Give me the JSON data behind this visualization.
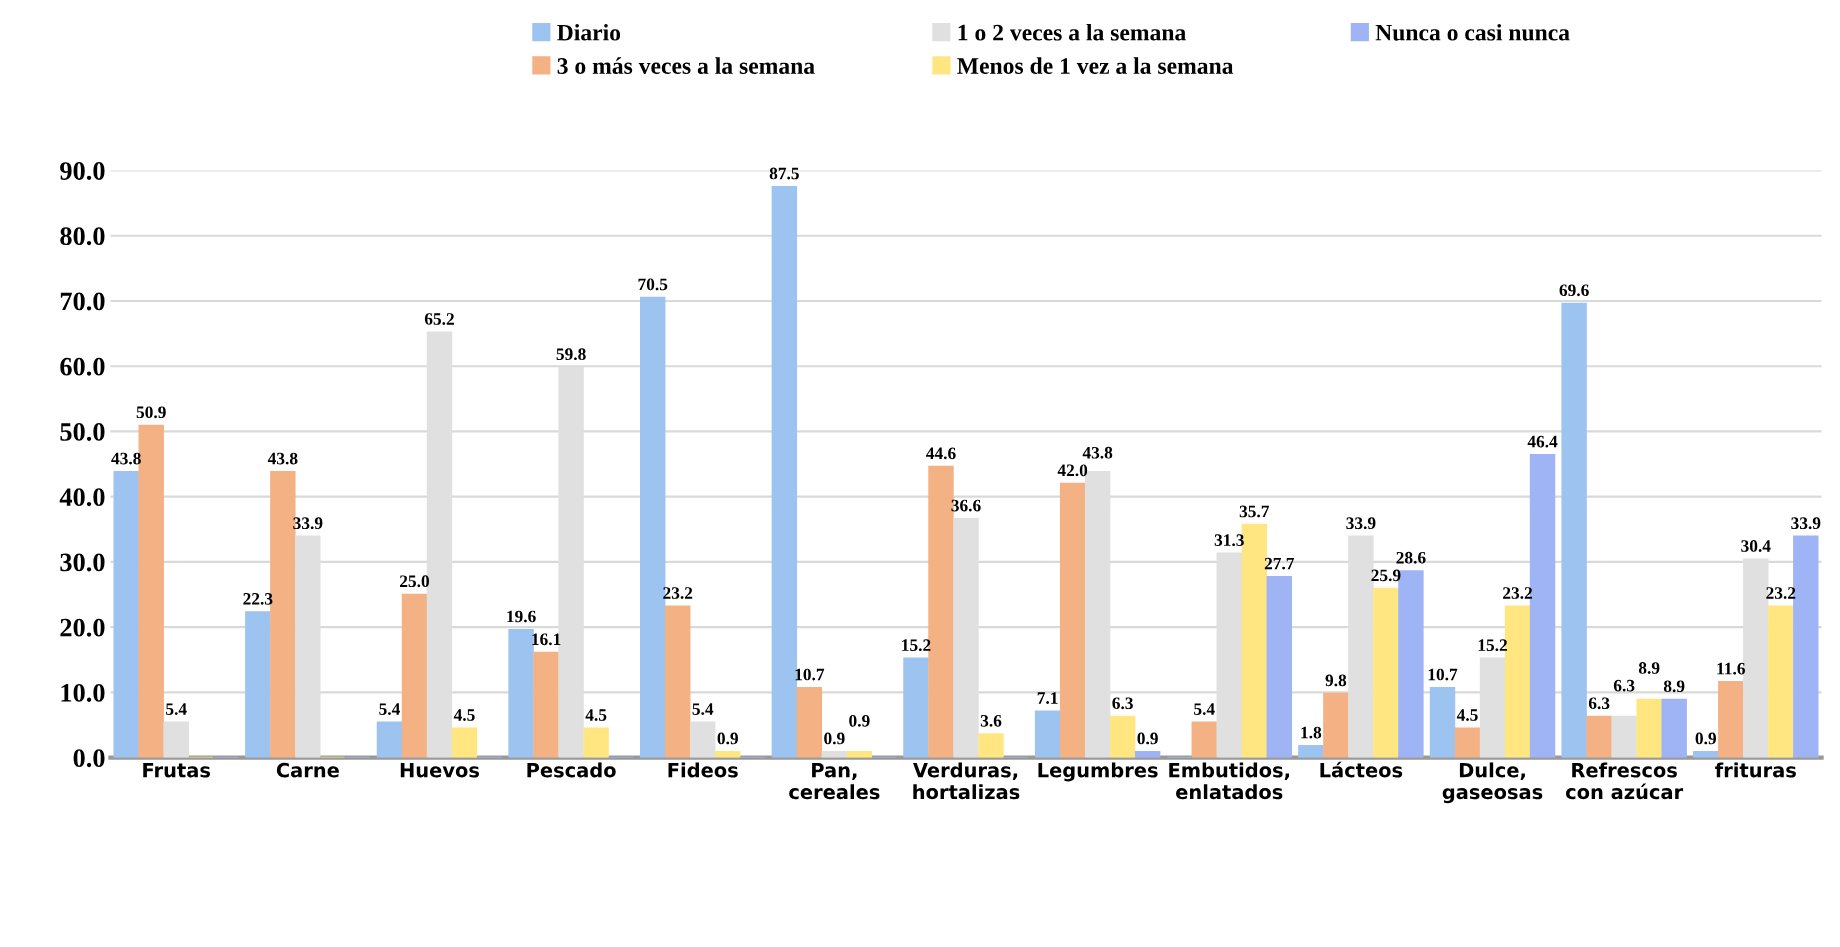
{
  "chart_data": {
    "type": "bar",
    "categories": [
      "Frutas",
      "Carne",
      "Huevos",
      "Pescado",
      "Fideos",
      "Pan,\ncereales",
      "Verduras,\nhortalizas",
      "Legumbres",
      "Embutidos,\nenlatados",
      "Lácteos",
      "Dulce,\ngaseosas",
      "Refrescos\ncon azúcar",
      "frituras"
    ],
    "series": [
      {
        "name": "Diario",
        "color": "#9dc3f0",
        "values": [
          43.8,
          22.3,
          5.4,
          19.6,
          70.5,
          87.5,
          15.2,
          7.1,
          0,
          1.8,
          10.7,
          69.6,
          0.9
        ],
        "value_labels": [
          "43.8",
          "22.3",
          "5.4",
          "19.6",
          "70.5",
          "87.5",
          "15.2",
          "7.1",
          null,
          "1.8",
          "10.7",
          "69.6",
          "0.9"
        ]
      },
      {
        "name": "3 o más veces a la semana",
        "color": "#f4b183",
        "values": [
          50.9,
          43.8,
          25.0,
          16.1,
          23.2,
          10.7,
          44.6,
          42.0,
          5.4,
          9.8,
          4.5,
          6.3,
          11.6
        ],
        "value_labels": [
          "50.9",
          "43.8",
          "25.0",
          "16.1",
          "23.2",
          "10.7",
          "44.6",
          "42.0",
          "5.4",
          "9.8",
          "4.5",
          "6.3",
          "11.6"
        ]
      },
      {
        "name": "1 o 2 veces a la semana",
        "color": "#e0e0e0",
        "values": [
          5.4,
          33.9,
          65.2,
          59.8,
          5.4,
          0.9,
          36.6,
          43.8,
          31.3,
          33.9,
          15.2,
          6.3,
          30.4
        ],
        "value_labels": [
          "5.4",
          "33.9",
          "65.2",
          "59.8",
          "5.4",
          "0.9",
          "36.6",
          "43.8",
          "31.3",
          "33.9",
          "15.2",
          "6.3",
          "30.4"
        ]
      },
      {
        "name": "Menos de 1 vez a la semana",
        "color": "#ffe680",
        "values": [
          0,
          0,
          4.5,
          4.5,
          0.9,
          0.9,
          3.6,
          6.3,
          35.7,
          25.9,
          23.2,
          8.9,
          23.2
        ],
        "value_labels": [
          null,
          null,
          "4.5",
          "4.5",
          "0.9",
          "0.9",
          "3.6",
          "6.3",
          "35.7",
          "25.9",
          "23.2",
          "8.9",
          "23.2"
        ]
      },
      {
        "name": "Nunca o casi nunca",
        "color": "#9fb4f5",
        "values": [
          0,
          0,
          0,
          0,
          0,
          0,
          0,
          0.9,
          27.7,
          28.6,
          46.4,
          8.9,
          33.9
        ],
        "value_labels": [
          null,
          null,
          null,
          null,
          null,
          null,
          null,
          "0.9",
          "27.7",
          "28.6",
          "46.4",
          "8.9",
          "33.9"
        ]
      }
    ],
    "ylim": [
      0,
      90
    ],
    "yticks": [
      {
        "value": 0,
        "label": "0.0"
      },
      {
        "value": 10,
        "label": "10.0"
      },
      {
        "value": 20,
        "label": "20.0"
      },
      {
        "value": 30,
        "label": "30.0"
      },
      {
        "value": 40,
        "label": "40.0"
      },
      {
        "value": 50,
        "label": "50.0"
      },
      {
        "value": 60,
        "label": "60.0"
      },
      {
        "value": 70,
        "label": "70.0"
      },
      {
        "value": 80,
        "label": "80.0"
      },
      {
        "value": 90,
        "label": "90.0"
      }
    ],
    "grid": "y",
    "legend": "top"
  }
}
